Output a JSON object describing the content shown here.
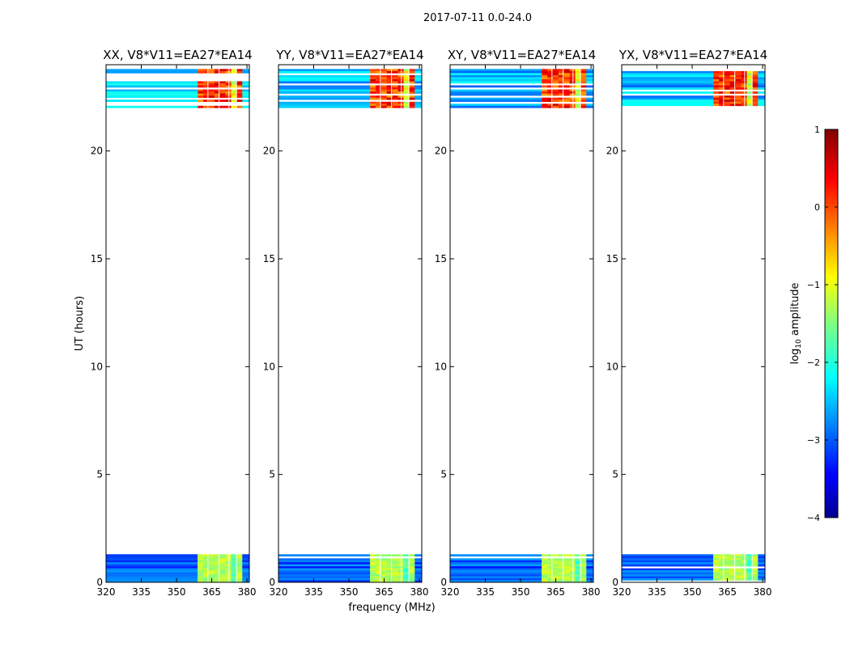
{
  "figure": {
    "suptitle": "2017-07-11 0.0-24.0"
  },
  "chart_data": {
    "type": "heatmap",
    "xlabel": "frequency (MHz)",
    "ylabel": "UT (hours)",
    "xlim": [
      320,
      381
    ],
    "ylim": [
      0,
      24
    ],
    "xticks": [
      320,
      335,
      350,
      365,
      380
    ],
    "yticks": [
      0,
      5,
      10,
      15,
      20
    ],
    "panels": [
      {
        "title": "XX, V8*V11=EA27*EA14"
      },
      {
        "title": "YY, V8*V11=EA27*EA14"
      },
      {
        "title": "XY, V8*V11=EA27*EA14"
      },
      {
        "title": "YX, V8*V11=EA27*EA14"
      }
    ],
    "observed_time_ranges_hours": [
      [
        0.0,
        1.3
      ],
      [
        22.0,
        23.8
      ]
    ],
    "rfi_band_mhz": [
      359,
      378
    ],
    "colorbar": {
      "label": "log10 amplitude",
      "label_main": "log",
      "label_sub": "10",
      "label_tail": " amplitude",
      "min": -4,
      "max": 1,
      "ticks": [
        1,
        0,
        -1,
        -2,
        -3,
        -4
      ],
      "tick_labels": [
        "1",
        "0",
        "−1",
        "−2",
        "−3",
        "−4"
      ],
      "colormap": "jet"
    }
  }
}
